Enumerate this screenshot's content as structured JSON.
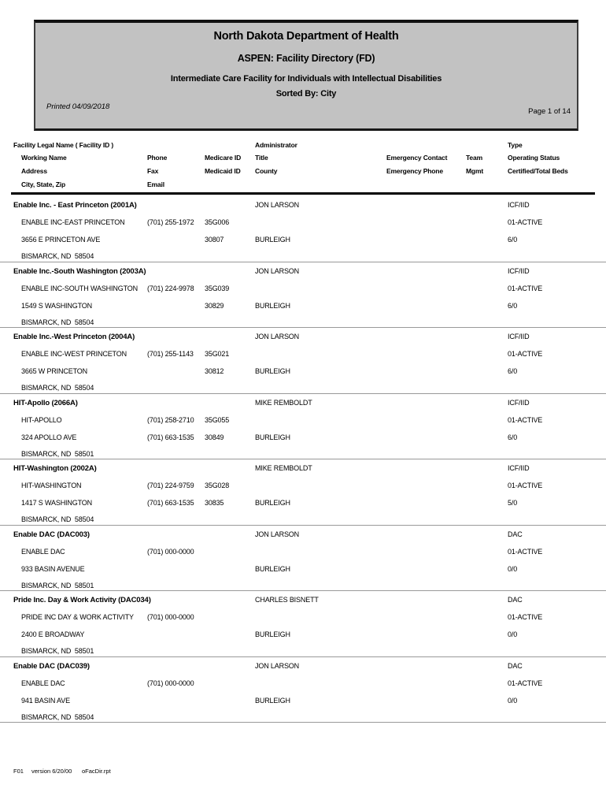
{
  "report_header": {
    "title": "North Dakota Department of Health",
    "subtitle": "ASPEN: Facility Directory (FD)",
    "category": "Intermediate Care Facility for Individuals with Intellectual Disabilities",
    "sorted_by": "Sorted By: City",
    "printed": "Printed 04/09/2018",
    "page_number": "Page 1 of 14"
  },
  "column_headers": {
    "legal_name": "Facility Legal Name ( Facility ID )",
    "administrator": "Administrator",
    "type": "Type",
    "working_name": "Working Name",
    "phone": "Phone",
    "medicare_id": "Medicare ID",
    "title": "Title",
    "emergency_contact": "Emergency Contact",
    "team": "Team",
    "operating_status": "Operating Status",
    "address": "Address",
    "fax": "Fax",
    "medicaid_id": "Medicaid ID",
    "county": "County",
    "emergency_phone": "Emergency Phone",
    "mgmt": "Mgmt",
    "beds": "Certified/Total Beds",
    "city_state_zip": "City, State, Zip",
    "email": "Email"
  },
  "facilities": [
    {
      "legal_name": "Enable Inc. - East Princeton (2001A)",
      "administrator": "JON LARSON",
      "type": "ICF/IID",
      "working_name": "ENABLE INC-EAST PRINCETON",
      "phone": "(701) 255-1972",
      "medicare_id": "35G006",
      "operating_status": "01-ACTIVE",
      "address": "3656 E PRINCETON AVE",
      "fax": "",
      "medicaid_id": "30807",
      "county": "BURLEIGH",
      "beds": "6/0",
      "city_state_zip": "BISMARCK, ND  58504"
    },
    {
      "legal_name": "Enable Inc.-South Washington (2003A)",
      "administrator": "JON LARSON",
      "type": "ICF/IID",
      "working_name": "ENABLE INC-SOUTH WASHINGTON",
      "phone": "(701) 224-9978",
      "medicare_id": "35G039",
      "operating_status": "01-ACTIVE",
      "address": "1549 S WASHINGTON",
      "fax": "",
      "medicaid_id": "30829",
      "county": "BURLEIGH",
      "beds": "6/0",
      "city_state_zip": "BISMARCK, ND  58504"
    },
    {
      "legal_name": "Enable Inc.-West Princeton (2004A)",
      "administrator": "JON LARSON",
      "type": "ICF/IID",
      "working_name": "ENABLE INC-WEST PRINCETON",
      "phone": "(701) 255-1143",
      "medicare_id": "35G021",
      "operating_status": "01-ACTIVE",
      "address": "3665 W PRINCETON",
      "fax": "",
      "medicaid_id": "30812",
      "county": "BURLEIGH",
      "beds": "6/0",
      "city_state_zip": "BISMARCK, ND  58504"
    },
    {
      "legal_name": "HIT-Apollo (2066A)",
      "administrator": "MIKE REMBOLDT",
      "type": "ICF/IID",
      "working_name": "HIT-APOLLO",
      "phone": "(701) 258-2710",
      "medicare_id": "35G055",
      "operating_status": "01-ACTIVE",
      "address": "324 APOLLO AVE",
      "fax": "(701) 663-1535",
      "medicaid_id": "30849",
      "county": "BURLEIGH",
      "beds": "6/0",
      "city_state_zip": "BISMARCK, ND  58501"
    },
    {
      "legal_name": "HIT-Washington (2002A)",
      "administrator": "MIKE REMBOLDT",
      "type": "ICF/IID",
      "working_name": "HIT-WASHINGTON",
      "phone": "(701) 224-9759",
      "medicare_id": "35G028",
      "operating_status": "01-ACTIVE",
      "address": "1417 S WASHINGTON",
      "fax": "(701) 663-1535",
      "medicaid_id": "30835",
      "county": "BURLEIGH",
      "beds": "5/0",
      "city_state_zip": "BISMARCK, ND  58504"
    },
    {
      "legal_name": "Enable DAC (DAC003)",
      "administrator": "JON LARSON",
      "type": "DAC",
      "working_name": "ENABLE DAC",
      "phone": "(701) 000-0000",
      "medicare_id": "",
      "operating_status": "01-ACTIVE",
      "address": "933 BASIN AVENUE",
      "fax": "",
      "medicaid_id": "",
      "county": "BURLEIGH",
      "beds": "0/0",
      "city_state_zip": "BISMARCK, ND  58501"
    },
    {
      "legal_name": "Pride Inc. Day & Work Activity (DAC034)",
      "administrator": "CHARLES BISNETT",
      "type": "DAC",
      "working_name": "PRIDE INC DAY & WORK ACTIVITY",
      "phone": "(701) 000-0000",
      "medicare_id": "",
      "operating_status": "01-ACTIVE",
      "address": "2400 E BROADWAY",
      "fax": "",
      "medicaid_id": "",
      "county": "BURLEIGH",
      "beds": "0/0",
      "city_state_zip": "BISMARCK, ND  58501"
    },
    {
      "legal_name": "Enable DAC (DAC039)",
      "administrator": "JON LARSON",
      "type": "DAC",
      "working_name": "ENABLE DAC",
      "phone": "(701) 000-0000",
      "medicare_id": "",
      "operating_status": "01-ACTIVE",
      "address": "941 BASIN AVE",
      "fax": "",
      "medicaid_id": "",
      "county": "BURLEIGH",
      "beds": "0/0",
      "city_state_zip": "BISMARCK, ND  58504"
    }
  ],
  "footer": {
    "form_id": "F01",
    "version": "version 6/20/00",
    "report_file": "oFacDir.rpt"
  },
  "colors": {
    "header_bg": "#c2c2c2",
    "separator": "#999999"
  }
}
